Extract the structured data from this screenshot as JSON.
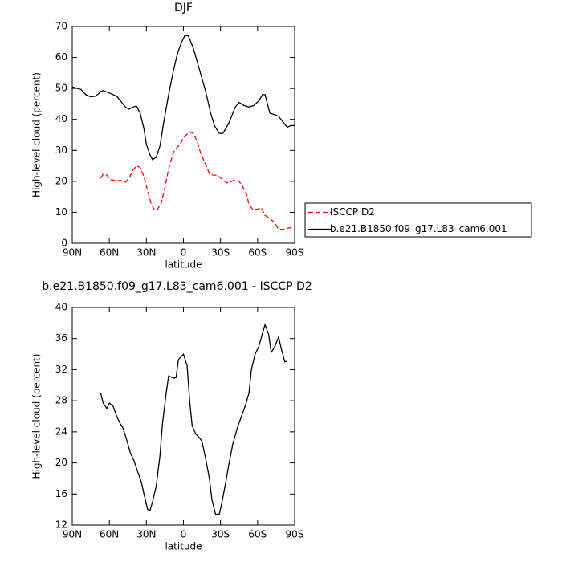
{
  "chart_data": [
    {
      "type": "line",
      "title": "DJF",
      "x_label": "latitude",
      "y_label": "High-level cloud (percent)",
      "xlim": [
        90,
        -90
      ],
      "xticks": [
        {
          "value": 90,
          "label": "90N"
        },
        {
          "value": 60,
          "label": "60N"
        },
        {
          "value": 30,
          "label": "30N"
        },
        {
          "value": 0,
          "label": "0"
        },
        {
          "value": -30,
          "label": "30S"
        },
        {
          "value": -60,
          "label": "60S"
        },
        {
          "value": -90,
          "label": "90S"
        }
      ],
      "ylim": [
        0,
        70
      ],
      "yticks": [
        0,
        10,
        20,
        30,
        40,
        50,
        60,
        70
      ],
      "legend": "right",
      "series": [
        {
          "name": "ISCCP D2",
          "color": "#ff0000",
          "dashed": true,
          "x": [
            67,
            65,
            62,
            59,
            54,
            51,
            47,
            44,
            41,
            38,
            35,
            32,
            29,
            26,
            23,
            21,
            18,
            15,
            12,
            8,
            5,
            2,
            -1,
            -5,
            -8,
            -11,
            -14,
            -18,
            -21,
            -24,
            -27,
            -32,
            -35,
            -39,
            -42,
            -45,
            -47,
            -51,
            -53,
            -56,
            -60,
            -63,
            -66,
            -70,
            -74,
            -77,
            -81,
            -86,
            -90
          ],
          "values": [
            21,
            22.3,
            22,
            20.5,
            20.2,
            20.3,
            19.7,
            21,
            23.5,
            25,
            24.5,
            21.5,
            17,
            12.5,
            10.5,
            11,
            13,
            18,
            24,
            29.5,
            31,
            32.5,
            34.5,
            36,
            35.5,
            33,
            29,
            25.5,
            22.5,
            22,
            22,
            20.5,
            19.5,
            20,
            20.5,
            20,
            19,
            16,
            12.5,
            11,
            11,
            11.5,
            9,
            8,
            6.5,
            4.5,
            4.5,
            5,
            5.5
          ]
        },
        {
          "name": "b.e21.B1850.f09_g17.L83_cam6.001",
          "color": "#000000",
          "dashed": false,
          "x": [
            90,
            83,
            79,
            75,
            71,
            67,
            65,
            61,
            54,
            51,
            47,
            44,
            41,
            38,
            35,
            32,
            30,
            27,
            25,
            22,
            19,
            16,
            12,
            8,
            5,
            2,
            -1,
            -4,
            -8,
            -13,
            -18,
            -22,
            -25,
            -29,
            -32,
            -37,
            -42,
            -45,
            -49,
            -53,
            -57,
            -61,
            -64,
            -66,
            -70,
            -74,
            -77,
            -81,
            -84,
            -87,
            -90
          ],
          "values": [
            50.5,
            49.7,
            48,
            47.3,
            47.5,
            49,
            49.3,
            48.7,
            47.5,
            46,
            44,
            43.3,
            44,
            44.3,
            42,
            37,
            32,
            28.5,
            27,
            27.8,
            31.5,
            39,
            48,
            56,
            61,
            64.5,
            67,
            67,
            63,
            56,
            49,
            42,
            38,
            35.5,
            35.5,
            39,
            44,
            45.5,
            44.5,
            44,
            44.5,
            46,
            48,
            48,
            42,
            41.5,
            41,
            39,
            37.5,
            38,
            38
          ]
        }
      ]
    },
    {
      "type": "line",
      "title": "b.e21.B1850.f09_g17.L83_cam6.001 - ISCCP D2",
      "x_label": "latitude",
      "y_label": "High-level cloud (percent)",
      "xlim": [
        90,
        -90
      ],
      "xticks": [
        {
          "value": 90,
          "label": "90N"
        },
        {
          "value": 60,
          "label": "60N"
        },
        {
          "value": 30,
          "label": "30N"
        },
        {
          "value": 0,
          "label": "0"
        },
        {
          "value": -30,
          "label": "30S"
        },
        {
          "value": -60,
          "label": "60S"
        },
        {
          "value": -90,
          "label": "90S"
        }
      ],
      "ylim": [
        12,
        40
      ],
      "yticks": [
        12,
        16,
        20,
        24,
        28,
        32,
        36,
        40
      ],
      "color": "#000000",
      "x": [
        67,
        65,
        62,
        60,
        57,
        54,
        51,
        49,
        46,
        43,
        40,
        38,
        34,
        32,
        29,
        27,
        25,
        22,
        19,
        17,
        14,
        12,
        8,
        6,
        4,
        0,
        -3,
        -5,
        -7,
        -10,
        -12,
        -15,
        -18,
        -21,
        -23,
        -26,
        -29,
        -31,
        -34,
        -37,
        -40,
        -44,
        -47,
        -50,
        -53,
        -55,
        -58,
        -61,
        -64,
        -66,
        -69,
        -71,
        -74,
        -77,
        -79,
        -82,
        -84
      ],
      "values": [
        29,
        27.7,
        27,
        27.7,
        27.3,
        26,
        25,
        24.5,
        23,
        21.3,
        20.3,
        19.3,
        17.5,
        16,
        14,
        13.9,
        15,
        17,
        21,
        25,
        29,
        31.2,
        30.9,
        31,
        33.3,
        34,
        32.5,
        28,
        24.8,
        23.7,
        23.4,
        22.8,
        20.5,
        18,
        15.3,
        13.4,
        13.4,
        14.8,
        17.3,
        20,
        22.5,
        24.7,
        26,
        27.3,
        29,
        32,
        34,
        35,
        36.7,
        37.8,
        36.5,
        34.2,
        35,
        36.2,
        34.8,
        33,
        33.1
      ]
    }
  ]
}
